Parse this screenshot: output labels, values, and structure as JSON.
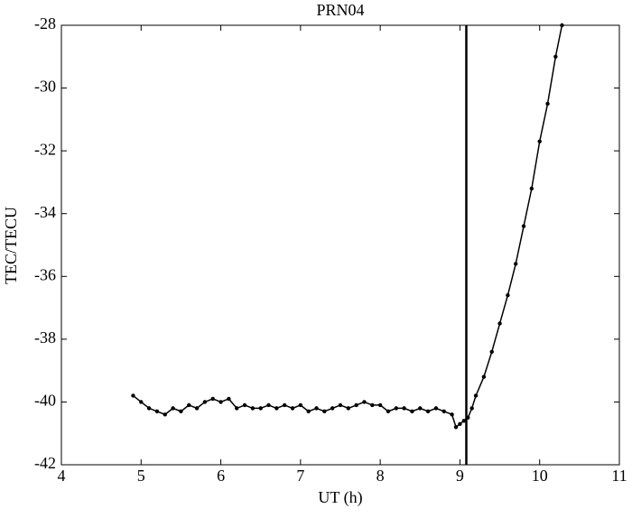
{
  "chart_data": {
    "type": "line",
    "title": "PRN04",
    "x_label": "UT (h)",
    "y_label": "TEC/TECU",
    "x": [
      4.9,
      5.0,
      5.1,
      5.2,
      5.3,
      5.4,
      5.5,
      5.6,
      5.7,
      5.8,
      5.9,
      6.0,
      6.1,
      6.2,
      6.3,
      6.4,
      6.5,
      6.6,
      6.7,
      6.8,
      6.9,
      7.0,
      7.1,
      7.2,
      7.3,
      7.4,
      7.5,
      7.6,
      7.7,
      7.8,
      7.9,
      8.0,
      8.1,
      8.2,
      8.3,
      8.4,
      8.5,
      8.6,
      8.7,
      8.8,
      8.9,
      8.95,
      9.0,
      9.05,
      9.1,
      9.15,
      9.2,
      9.3,
      9.4,
      9.5,
      9.6,
      9.7,
      9.8,
      9.9,
      10.0,
      10.1,
      10.2,
      10.28
    ],
    "series": [
      {
        "name": "PRN04",
        "color": "#000000",
        "values": [
          -39.8,
          -40.0,
          -40.2,
          -40.3,
          -40.4,
          -40.2,
          -40.3,
          -40.1,
          -40.2,
          -40.0,
          -39.9,
          -40.0,
          -39.9,
          -40.2,
          -40.1,
          -40.2,
          -40.2,
          -40.1,
          -40.2,
          -40.1,
          -40.2,
          -40.1,
          -40.3,
          -40.2,
          -40.3,
          -40.2,
          -40.1,
          -40.2,
          -40.1,
          -40.0,
          -40.1,
          -40.1,
          -40.3,
          -40.2,
          -40.2,
          -40.3,
          -40.2,
          -40.3,
          -40.2,
          -40.3,
          -40.4,
          -40.8,
          -40.7,
          -40.6,
          -40.5,
          -40.2,
          -39.8,
          -39.2,
          -38.4,
          -37.5,
          -36.6,
          -35.6,
          -34.4,
          -33.2,
          -31.7,
          -30.5,
          -29.0,
          -28.0
        ]
      }
    ],
    "vline": 9.08,
    "xlim": [
      4,
      11
    ],
    "xticks": [
      4,
      5,
      6,
      7,
      8,
      9,
      10,
      11
    ],
    "ylim": [
      -42,
      -28
    ],
    "yticks": [
      -42,
      -40,
      -38,
      -36,
      -34,
      -32,
      -30,
      -28
    ],
    "grid": false
  }
}
